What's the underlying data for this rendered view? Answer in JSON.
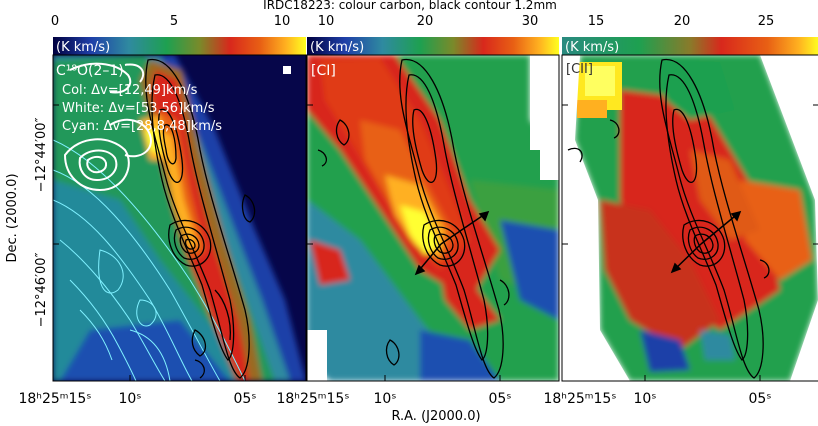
{
  "title": "IRDC18223: colour carbon, black contour 1.2mm",
  "colorbars": [
    {
      "ticks": [
        "0",
        "5",
        "10"
      ],
      "min": 0,
      "max": 11
    },
    {
      "ticks": [
        "10",
        "20",
        "30"
      ],
      "min": 6,
      "max": 33
    },
    {
      "ticks": [
        "15",
        "20",
        "25"
      ],
      "min": 13,
      "max": 28
    }
  ],
  "unit_label": "(K km/s)",
  "panels": [
    {
      "label": "C¹⁸O(2–1)",
      "legend": [
        "Col: Δv=[12,49]km/s",
        "White: Δv=[53,56]km/s",
        "Cyan: Δv=[28,8,48]km/s"
      ]
    },
    {
      "label": "[CI]"
    },
    {
      "label": "[CII]"
    }
  ],
  "axes": {
    "xlabel": "R.A. (J2000.0)",
    "ylabel": "Dec. (2000.0)",
    "yticks": [
      "−12°44′00″",
      "−12°46′00″"
    ],
    "xticks": [
      [
        "18ʰ25ᵐ15ˢ",
        "10ˢ",
        "05ˢ"
      ],
      [
        "18ʰ25ᵐ15ˢ",
        "10ˢ",
        "05ˢ"
      ],
      [
        "18ʰ25ᵐ15ˢ",
        "10ˢ",
        "05ˢ"
      ]
    ]
  },
  "colors": {
    "colormap": [
      "#000040",
      "#1f3fa8",
      "#2f8aa0",
      "#1ea050",
      "#2ea83a",
      "#9a8a2a",
      "#d8281c",
      "#e05a14",
      "#ffb020",
      "#ffff20"
    ],
    "contour_black": "#000000",
    "contour_white": "#ffffff",
    "contour_cyan": "#7ff0ff"
  }
}
